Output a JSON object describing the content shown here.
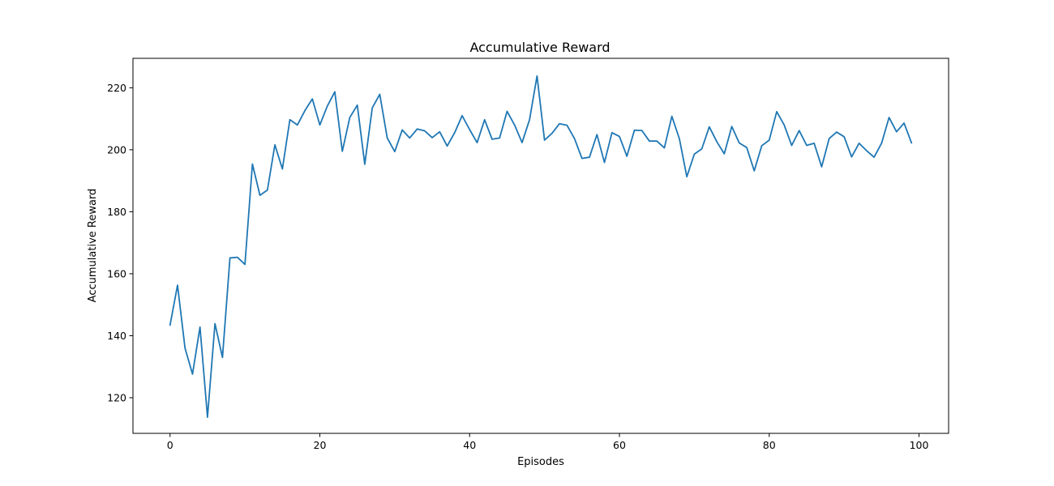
{
  "chart_data": {
    "type": "line",
    "title": "Accumulative Reward",
    "xlabel": "Episodes",
    "ylabel": "Accumulative Reward",
    "xlim": [
      -4.95,
      103.95
    ],
    "ylim": [
      108.5,
      229.5
    ],
    "xticks": [
      0,
      20,
      40,
      60,
      80,
      100
    ],
    "yticks": [
      120,
      140,
      160,
      180,
      200,
      220
    ],
    "grid": false,
    "series": [
      {
        "color": "#1f77b4",
        "x": [
          0,
          1,
          2,
          3,
          4,
          5,
          6,
          7,
          8,
          9,
          10,
          11,
          12,
          13,
          14,
          15,
          16,
          17,
          18,
          19,
          20,
          21,
          22,
          23,
          24,
          25,
          26,
          27,
          28,
          29,
          30,
          31,
          32,
          33,
          34,
          35,
          36,
          37,
          38,
          39,
          40,
          41,
          42,
          43,
          44,
          45,
          46,
          47,
          48,
          49,
          50,
          51,
          52,
          53,
          54,
          55,
          56,
          57,
          58,
          59,
          60,
          61,
          62,
          63,
          64,
          65,
          66,
          67,
          68,
          69,
          70,
          71,
          72,
          73,
          74,
          75,
          76,
          77,
          78,
          79,
          80,
          81,
          82,
          83,
          84,
          85,
          86,
          87,
          88,
          89,
          90,
          91,
          92,
          93,
          94,
          95,
          96,
          97,
          98,
          99
        ],
        "values": [
          143.4,
          156.3,
          136.0,
          127.6,
          142.8,
          113.7,
          143.9,
          133.0,
          165.1,
          165.3,
          163.0,
          195.4,
          185.3,
          187.0,
          201.6,
          193.8,
          209.7,
          208.0,
          212.6,
          216.4,
          208.0,
          214.1,
          218.7,
          199.5,
          210.4,
          214.4,
          195.3,
          213.5,
          217.9,
          203.8,
          199.4,
          206.4,
          203.8,
          206.7,
          206.1,
          203.9,
          205.8,
          201.2,
          205.5,
          211.0,
          206.5,
          202.3,
          209.7,
          203.4,
          203.8,
          212.4,
          208.0,
          202.3,
          209.7,
          223.8,
          203.1,
          205.3,
          208.4,
          207.9,
          203.6,
          197.2,
          197.6,
          204.9,
          195.9,
          205.5,
          204.3,
          197.9,
          206.3,
          206.2,
          202.8,
          202.8,
          200.6,
          210.8,
          203.6,
          191.3,
          198.6,
          200.3,
          207.4,
          202.6,
          198.7,
          207.5,
          202.2,
          200.7,
          193.2,
          201.3,
          203.1,
          212.3,
          208.0,
          201.4,
          206.2,
          201.4,
          202.1,
          194.5,
          203.6,
          205.7,
          204.2,
          197.7,
          202.1,
          199.7,
          197.6,
          202.1,
          210.4,
          205.8,
          208.6,
          202.2
        ]
      }
    ]
  }
}
